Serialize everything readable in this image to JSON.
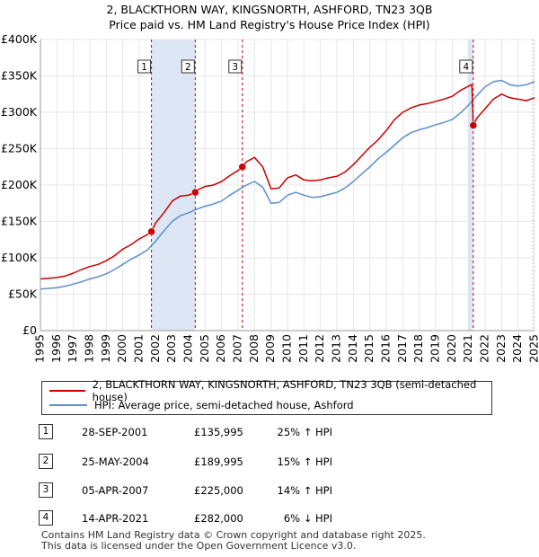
{
  "header": {
    "title_line1": "2, BLACKTHORN WAY, KINGSNORTH, ASHFORD, TN23 3QB",
    "title_line2": "Price paid vs. HM Land Registry's House Price Index (HPI)"
  },
  "colors": {
    "property": "#cc0000",
    "hpi": "#5b8fd0",
    "shade": "#dde6f4",
    "vline": "#cc0000",
    "grid": "#e6e6e6"
  },
  "chart_data": {
    "type": "line",
    "title": "Price paid vs. HM Land Registry's House Price Index (HPI)",
    "xlabel": "",
    "ylabel": "",
    "xlim": [
      1995,
      2025
    ],
    "ylim": [
      0,
      400000
    ],
    "y_ticks": [
      0,
      50000,
      100000,
      150000,
      200000,
      250000,
      300000,
      350000,
      400000
    ],
    "y_tick_labels": [
      "£0",
      "£50K",
      "£100K",
      "£150K",
      "£200K",
      "£250K",
      "£300K",
      "£350K",
      "£400K"
    ],
    "x_ticks": [
      1995,
      1996,
      1997,
      1998,
      1999,
      2000,
      2001,
      2002,
      2003,
      2004,
      2005,
      2006,
      2007,
      2008,
      2009,
      2010,
      2011,
      2012,
      2013,
      2014,
      2015,
      2016,
      2017,
      2018,
      2019,
      2020,
      2021,
      2022,
      2023,
      2024,
      2025
    ],
    "x_tick_labels": [
      "1995",
      "1996",
      "1997",
      "1998",
      "1999",
      "2000",
      "2001",
      "2002",
      "2003",
      "2004",
      "2005",
      "2006",
      "2007",
      "2008",
      "2009",
      "2010",
      "2011",
      "2012",
      "2013",
      "2014",
      "2015",
      "2016",
      "2017",
      "2018",
      "2019",
      "2020",
      "2021",
      "2022",
      "2023",
      "2024",
      "2025"
    ],
    "grid": true,
    "series": [
      {
        "name": "2, BLACKTHORN WAY, KINGSNORTH, ASHFORD, TN23 3QB (semi-detached house)",
        "color": "#cc0000",
        "x": [
          1995.0,
          1995.5,
          1996.0,
          1996.5,
          1997.0,
          1997.5,
          1998.0,
          1998.5,
          1999.0,
          1999.5,
          2000.0,
          2000.5,
          2001.0,
          2001.5,
          2001.74,
          2002.0,
          2002.5,
          2003.0,
          2003.5,
          2004.0,
          2004.4,
          2004.5,
          2005.0,
          2005.5,
          2006.0,
          2006.5,
          2007.0,
          2007.26,
          2007.5,
          2008.0,
          2008.5,
          2009.0,
          2009.5,
          2010.0,
          2010.5,
          2011.0,
          2011.5,
          2012.0,
          2012.5,
          2013.0,
          2013.5,
          2014.0,
          2014.5,
          2015.0,
          2015.5,
          2016.0,
          2016.5,
          2017.0,
          2017.5,
          2018.0,
          2018.5,
          2019.0,
          2019.5,
          2020.0,
          2020.5,
          2021.0,
          2021.2,
          2021.28,
          2021.5,
          2022.0,
          2022.5,
          2023.0,
          2023.5,
          2024.0,
          2024.5,
          2025.0
        ],
        "y": [
          71000,
          72000,
          73000,
          75000,
          79000,
          84000,
          88000,
          91000,
          96000,
          103000,
          112000,
          118000,
          126000,
          132000,
          135995,
          148000,
          162000,
          178000,
          185000,
          186000,
          189995,
          193000,
          198000,
          200000,
          205000,
          213000,
          220000,
          225000,
          232000,
          238000,
          225000,
          195000,
          196000,
          210000,
          214000,
          207000,
          206000,
          207000,
          210000,
          212000,
          218000,
          228000,
          240000,
          252000,
          262000,
          275000,
          290000,
          300000,
          306000,
          310000,
          312000,
          315000,
          318000,
          322000,
          330000,
          336000,
          338000,
          282000,
          292000,
          305000,
          318000,
          325000,
          320000,
          318000,
          316000,
          320000
        ]
      },
      {
        "name": "HPI: Average price, semi-detached house, Ashford",
        "color": "#5b8fd0",
        "x": [
          1995.0,
          1995.5,
          1996.0,
          1996.5,
          1997.0,
          1997.5,
          1998.0,
          1998.5,
          1999.0,
          1999.5,
          2000.0,
          2000.5,
          2001.0,
          2001.5,
          2002.0,
          2002.5,
          2003.0,
          2003.5,
          2004.0,
          2004.5,
          2005.0,
          2005.5,
          2006.0,
          2006.5,
          2007.0,
          2007.5,
          2008.0,
          2008.5,
          2009.0,
          2009.5,
          2010.0,
          2010.5,
          2011.0,
          2011.5,
          2012.0,
          2012.5,
          2013.0,
          2013.5,
          2014.0,
          2014.5,
          2015.0,
          2015.5,
          2016.0,
          2016.5,
          2017.0,
          2017.5,
          2018.0,
          2018.5,
          2019.0,
          2019.5,
          2020.0,
          2020.5,
          2021.0,
          2021.5,
          2022.0,
          2022.5,
          2023.0,
          2023.5,
          2024.0,
          2024.5,
          2025.0
        ],
        "y": [
          57000,
          58000,
          59000,
          61000,
          64000,
          67000,
          71000,
          74000,
          78000,
          84000,
          91000,
          98000,
          104000,
          111000,
          123000,
          137000,
          150000,
          158000,
          162000,
          167000,
          171000,
          174000,
          178000,
          186000,
          193000,
          200000,
          205000,
          197000,
          175000,
          176000,
          186000,
          190000,
          186000,
          183000,
          184000,
          187000,
          190000,
          196000,
          205000,
          215000,
          225000,
          236000,
          245000,
          255000,
          265000,
          272000,
          276000,
          279000,
          283000,
          286000,
          290000,
          299000,
          310000,
          323000,
          335000,
          342000,
          344000,
          338000,
          336000,
          338000,
          342000
        ]
      }
    ],
    "sale_markers": [
      {
        "label": "1",
        "x": 2001.74,
        "y": 135995
      },
      {
        "label": "2",
        "x": 2004.4,
        "y": 189995
      },
      {
        "label": "3",
        "x": 2007.26,
        "y": 225000
      },
      {
        "label": "4",
        "x": 2021.28,
        "y": 282000
      }
    ],
    "shaded_ranges": [
      [
        2001.74,
        2004.4
      ],
      [
        2020.95,
        2021.28
      ]
    ]
  },
  "legend": {
    "property_label": "2, BLACKTHORN WAY, KINGSNORTH, ASHFORD, TN23 3QB (semi-detached house)",
    "hpi_label": "HPI: Average price, semi-detached house, Ashford"
  },
  "sales": [
    {
      "num": "1",
      "date": "28-SEP-2001",
      "price": "£135,995",
      "hpi": "25% ↑ HPI"
    },
    {
      "num": "2",
      "date": "25-MAY-2004",
      "price": "£189,995",
      "hpi": "15% ↑ HPI"
    },
    {
      "num": "3",
      "date": "05-APR-2007",
      "price": "£225,000",
      "hpi": "14% ↑ HPI"
    },
    {
      "num": "4",
      "date": "14-APR-2021",
      "price": "£282,000",
      "hpi": "6% ↓ HPI"
    }
  ],
  "footer": {
    "line1": "Contains HM Land Registry data © Crown copyright and database right 2025.",
    "line2": "This data is licensed under the Open Government Licence v3.0."
  }
}
